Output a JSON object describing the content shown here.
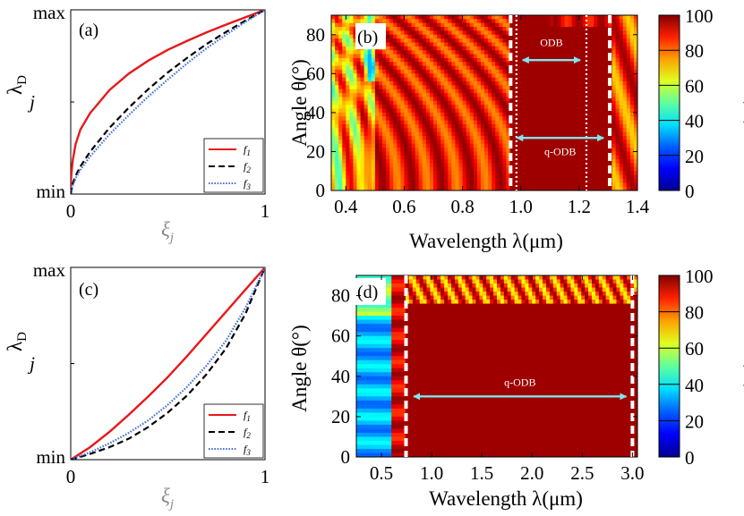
{
  "chart_data": [
    {
      "panel": "(a)",
      "type": "line",
      "xlabel": "ξ",
      "xlabel_sub": "j",
      "ylabel": "λ",
      "ylabel_sub": "D",
      "xlim": [
        0,
        1
      ],
      "ylim": [
        0,
        1
      ],
      "x_ticks": [
        "0",
        "1"
      ],
      "y_ticks": [
        "min",
        "j",
        "max"
      ],
      "legend_loc": "bottom-right",
      "series": [
        {
          "name": "f",
          "sub": "1",
          "color": "#e8181b",
          "style": "solid",
          "points": [
            [
              0,
              0
            ],
            [
              0.0025,
              0.096
            ],
            [
              0.01,
              0.182
            ],
            [
              0.025,
              0.27
            ],
            [
              0.05,
              0.35
            ],
            [
              0.1,
              0.44
            ],
            [
              0.2,
              0.565
            ],
            [
              0.3,
              0.655
            ],
            [
              0.4,
              0.725
            ],
            [
              0.5,
              0.783
            ],
            [
              0.6,
              0.832
            ],
            [
              0.7,
              0.878
            ],
            [
              0.8,
              0.92
            ],
            [
              0.9,
              0.96
            ],
            [
              1,
              1
            ]
          ]
        },
        {
          "name": "f",
          "sub": "2",
          "color": "#000000",
          "style": "dashed",
          "points": [
            [
              0,
              0
            ],
            [
              0.01,
              0.056
            ],
            [
              0.025,
              0.098
            ],
            [
              0.05,
              0.15
            ],
            [
              0.1,
              0.23
            ],
            [
              0.2,
              0.36
            ],
            [
              0.3,
              0.47
            ],
            [
              0.4,
              0.57
            ],
            [
              0.5,
              0.66
            ],
            [
              0.6,
              0.74
            ],
            [
              0.7,
              0.815
            ],
            [
              0.8,
              0.88
            ],
            [
              0.9,
              0.942
            ],
            [
              1,
              1
            ]
          ]
        },
        {
          "name": "f",
          "sub": "3",
          "color": "#4a72d6",
          "style": "dotted",
          "points": [
            [
              0,
              0
            ],
            [
              0.01,
              0.045
            ],
            [
              0.025,
              0.085
            ],
            [
              0.05,
              0.132
            ],
            [
              0.1,
              0.205
            ],
            [
              0.2,
              0.325
            ],
            [
              0.3,
              0.43
            ],
            [
              0.4,
              0.53
            ],
            [
              0.5,
              0.622
            ],
            [
              0.6,
              0.71
            ],
            [
              0.7,
              0.792
            ],
            [
              0.8,
              0.865
            ],
            [
              0.9,
              0.935
            ],
            [
              1,
              1
            ]
          ]
        }
      ]
    },
    {
      "panel": "(b)",
      "type": "heatmap",
      "xlabel": "Wavelength λ(μm)",
      "ylabel": "Angle θ(°)",
      "xlim": [
        0.35,
        1.4
      ],
      "ylim": [
        0,
        90
      ],
      "x_ticks": [
        "0.4",
        "0.6",
        "0.8",
        "1.0",
        "1.2",
        "1.4"
      ],
      "x_tick_values": [
        0.4,
        0.6,
        0.8,
        1.0,
        1.2,
        1.4
      ],
      "y_ticks": [
        "0",
        "20",
        "40",
        "60",
        "80"
      ],
      "y_tick_values": [
        0,
        20,
        40,
        60,
        80
      ],
      "colorbar_label": "R (%)",
      "colorbar_ticks": [
        "0",
        "20",
        "40",
        "60",
        "80",
        "100"
      ],
      "colorbar_range": [
        0,
        100
      ],
      "boundary_lines": [
        {
          "x": 0.965,
          "style": "dashed"
        },
        {
          "x": 0.985,
          "style": "dotted"
        },
        {
          "x": 1.225,
          "style": "dotted"
        },
        {
          "x": 1.305,
          "style": "dashed"
        }
      ],
      "annotations": [
        {
          "text": "ODB",
          "x_from": 0.985,
          "x_to": 1.225,
          "y": 67,
          "label_y": 76
        },
        {
          "text": "q-ODB",
          "x_from": 0.965,
          "x_to": 1.305,
          "y": 27,
          "label_y": 20
        }
      ]
    },
    {
      "panel": "(c)",
      "type": "line",
      "xlabel": "ξ",
      "xlabel_sub": "j",
      "ylabel": "λ",
      "ylabel_sub": "D",
      "xlim": [
        0,
        1
      ],
      "ylim": [
        0,
        1
      ],
      "x_ticks": [
        "0",
        "1"
      ],
      "y_ticks": [
        "min",
        "j",
        "max"
      ],
      "legend_loc": "bottom-right",
      "series": [
        {
          "name": "f",
          "sub": "1",
          "color": "#e8181b",
          "style": "solid",
          "points": [
            [
              0,
              0
            ],
            [
              0.1,
              0.065
            ],
            [
              0.2,
              0.145
            ],
            [
              0.3,
              0.235
            ],
            [
              0.4,
              0.33
            ],
            [
              0.5,
              0.43
            ],
            [
              0.6,
              0.54
            ],
            [
              0.7,
              0.655
            ],
            [
              0.8,
              0.77
            ],
            [
              0.9,
              0.885
            ],
            [
              1,
              1
            ]
          ]
        },
        {
          "name": "f",
          "sub": "2",
          "color": "#000000",
          "style": "dashed",
          "points": [
            [
              0,
              0
            ],
            [
              0.1,
              0.03
            ],
            [
              0.2,
              0.065
            ],
            [
              0.3,
              0.11
            ],
            [
              0.4,
              0.17
            ],
            [
              0.5,
              0.245
            ],
            [
              0.6,
              0.335
            ],
            [
              0.7,
              0.445
            ],
            [
              0.8,
              0.58
            ],
            [
              0.9,
              0.76
            ],
            [
              1,
              1
            ]
          ]
        },
        {
          "name": "f",
          "sub": "3",
          "color": "#4a72d6",
          "style": "dotted",
          "points": [
            [
              0,
              0
            ],
            [
              0.1,
              0.038
            ],
            [
              0.2,
              0.085
            ],
            [
              0.3,
              0.14
            ],
            [
              0.4,
              0.205
            ],
            [
              0.5,
              0.285
            ],
            [
              0.6,
              0.38
            ],
            [
              0.7,
              0.49
            ],
            [
              0.8,
              0.62
            ],
            [
              0.9,
              0.79
            ],
            [
              1,
              1
            ]
          ]
        }
      ]
    },
    {
      "panel": "(d)",
      "type": "heatmap",
      "xlabel": "Wavelength λ(μm)",
      "ylabel": "Angle θ(°)",
      "xlim": [
        0.25,
        3.05
      ],
      "ylim": [
        0,
        90
      ],
      "x_ticks": [
        "0.5",
        "1.0",
        "1.5",
        "2.0",
        "2.5",
        "3.0"
      ],
      "x_tick_values": [
        0.5,
        1.0,
        1.5,
        2.0,
        2.5,
        3.0
      ],
      "y_ticks": [
        "0",
        "20",
        "40",
        "60",
        "80"
      ],
      "y_tick_values": [
        0,
        20,
        40,
        60,
        80
      ],
      "colorbar_label": "R (%)",
      "colorbar_ticks": [
        "0",
        "20",
        "40",
        "60",
        "80",
        "100"
      ],
      "colorbar_range": [
        0,
        100
      ],
      "boundary_lines": [
        {
          "x": 0.745,
          "style": "dashed"
        },
        {
          "x": 3.0,
          "style": "dashed"
        }
      ],
      "annotations": [
        {
          "text": "q-ODB",
          "x_from": 0.76,
          "x_to": 3.0,
          "y": 30,
          "label_y": 37
        }
      ]
    }
  ],
  "colormap": [
    "#00008f",
    "#0000ff",
    "#0080ff",
    "#00ffff",
    "#80ff80",
    "#ffff00",
    "#ff8000",
    "#ff0000",
    "#800000"
  ]
}
